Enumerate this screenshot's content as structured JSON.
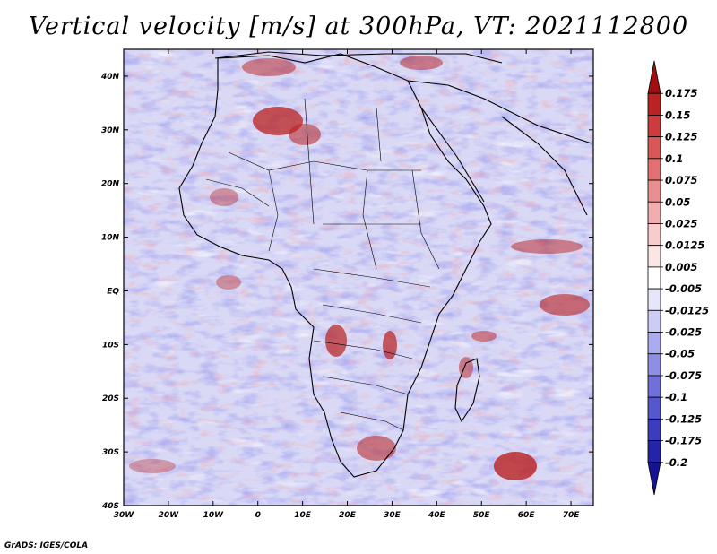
{
  "title": "Vertical velocity [m/s] at 300hPa, VT: 2021112800",
  "footer": "GrADS: IGES/COLA",
  "map": {
    "lon_labels": [
      "30W",
      "20W",
      "10W",
      "0",
      "10E",
      "20E",
      "30E",
      "40E",
      "50E",
      "60E",
      "70E"
    ],
    "lat_labels": [
      "40N",
      "30N",
      "20N",
      "10N",
      "EQ",
      "10S",
      "20S",
      "30S",
      "40S"
    ],
    "lon_range": [
      -30,
      75
    ],
    "lat_range": [
      -40,
      45
    ],
    "field": "vertical velocity",
    "level": "300hPa",
    "valid_time": "2021112800"
  },
  "colorbar": {
    "labels": [
      "0.175",
      "0.15",
      "0.125",
      "0.1",
      "0.075",
      "0.05",
      "0.025",
      "0.0125",
      "0.005",
      "-0.005",
      "-0.0125",
      "-0.025",
      "-0.05",
      "-0.075",
      "-0.1",
      "-0.125",
      "-0.175",
      "-0.2"
    ],
    "colors": [
      "#a01010",
      "#bc2222",
      "#cc3c3c",
      "#d85757",
      "#e27272",
      "#ea8f8f",
      "#f2aeae",
      "#f8cccc",
      "#fbe6e6",
      "#ffffff",
      "#e6e6fb",
      "#ccccf7",
      "#ababef",
      "#8e8ee6",
      "#7070da",
      "#5656cd",
      "#3c3cbd",
      "#2424a8",
      "#141490"
    ]
  }
}
